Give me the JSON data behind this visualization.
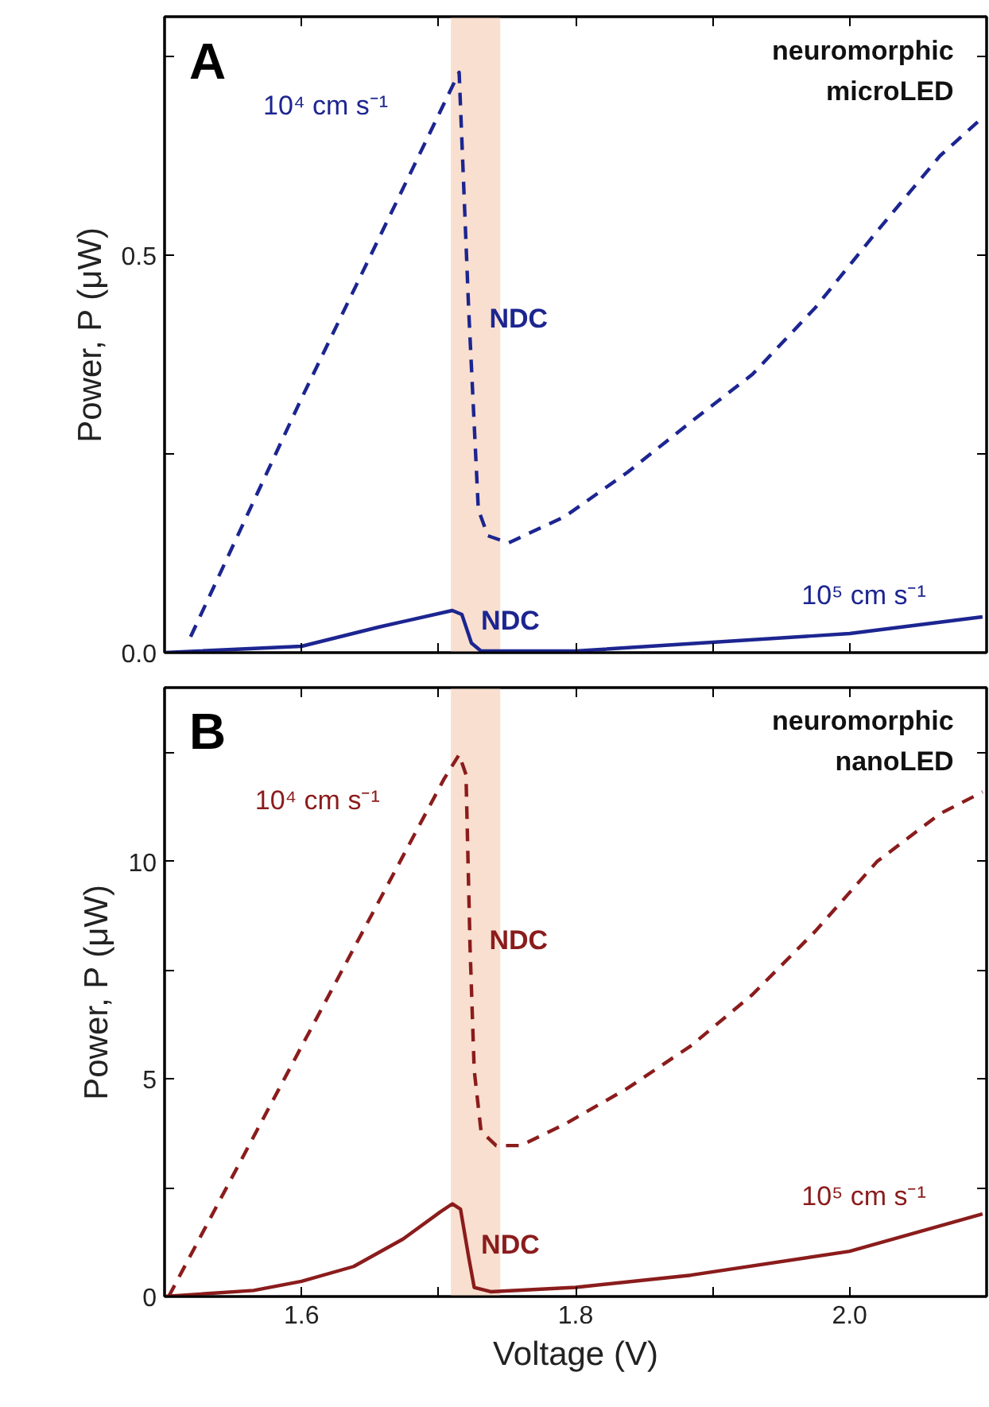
{
  "chart_data": [
    {
      "type": "line",
      "title": "A",
      "subtitle": "neuromorphic\nmicroLED",
      "ylabel": "Power, P (μW)",
      "xlim": [
        1.5,
        2.1
      ],
      "ylim": [
        0,
        0.8
      ],
      "xticks": [
        {
          "value": 1.6,
          "label": null
        },
        {
          "value": 1.7,
          "label": null
        },
        {
          "value": 1.8,
          "label": null
        },
        {
          "value": 1.9,
          "label": null
        },
        {
          "value": 2,
          "label": null
        }
      ],
      "yticks": [
        {
          "value": 0,
          "label": "0.0"
        },
        {
          "value": 0.25,
          "label": null
        },
        0.5,
        {
          "value": 0.75,
          "label": null
        }
      ],
      "tick_labels": "y",
      "bands": [
        {
          "axis": "x",
          "from": 1.709,
          "to": 1.745,
          "label": null,
          "color": "#f9dfcf"
        }
      ],
      "series": [
        {
          "color": "#1c2590",
          "line_style": "dashed",
          "x": [
            1.519,
            1.6,
            1.715,
            1.722,
            1.729,
            1.736,
            1.751,
            1.792,
            1.838,
            1.884,
            1.929,
            1.975,
            2.02,
            2.066,
            2.097
          ],
          "values": [
            0.02,
            0.32,
            0.73,
            0.43,
            0.18,
            0.147,
            0.138,
            0.171,
            0.227,
            0.29,
            0.35,
            0.434,
            0.53,
            0.625,
            0.673
          ]
        },
        {
          "color": "#1c2590",
          "line_style": "solid",
          "x": [
            1.5,
            1.6,
            1.656,
            1.71,
            1.717,
            1.724,
            1.731,
            1.8,
            2.0,
            2.097
          ],
          "values": [
            0.0,
            0.008,
            0.032,
            0.053,
            0.048,
            0.012,
            0.002,
            0.002,
            0.024,
            0.045
          ]
        }
      ],
      "annotations": [
        "10⁴ cm s⁻¹",
        "NDC",
        "NDC",
        "10⁵ cm s⁻¹"
      ]
    },
    {
      "type": "line",
      "title": "B",
      "subtitle": "neuromorphic\nnanoLED",
      "xlabel": "Voltage (V)",
      "ylabel": "Power, P (μW)",
      "xlim": [
        1.5,
        2.1
      ],
      "ylim": [
        0,
        14
      ],
      "xticks": [
        1.6,
        {
          "value": 1.7,
          "label": null
        },
        1.8,
        {
          "value": 1.9,
          "label": null
        },
        {
          "value": 2,
          "label": "2.0"
        }
      ],
      "yticks": [
        0,
        {
          "value": 2.5,
          "label": null
        },
        5,
        {
          "value": 7.5,
          "label": null
        },
        10,
        {
          "value": 12.5,
          "label": null
        }
      ],
      "bands": [
        {
          "axis": "x",
          "from": 1.709,
          "to": 1.745,
          "label": null,
          "color": "#f9dfcf"
        }
      ],
      "series": [
        {
          "color": "#8b1c1c",
          "line_style": "dashed",
          "x": [
            1.503,
            1.6,
            1.704,
            1.715,
            1.72,
            1.723,
            1.726,
            1.731,
            1.742,
            1.76,
            1.792,
            1.838,
            1.884,
            1.929,
            1.975,
            2.02,
            2.066,
            2.097
          ],
          "values": [
            0,
            5.75,
            11.9,
            12.46,
            12.0,
            8.0,
            5.2,
            3.8,
            3.47,
            3.47,
            3.96,
            4.79,
            5.76,
            6.94,
            8.4,
            10.0,
            11.1,
            11.6
          ]
        },
        {
          "color": "#8b1c1c",
          "line_style": "solid",
          "x": [
            1.5,
            1.565,
            1.6,
            1.638,
            1.674,
            1.701,
            1.71,
            1.716,
            1.722,
            1.726,
            1.738,
            1.8,
            1.884,
            2.0,
            2.097
          ],
          "values": [
            0,
            0.14,
            0.35,
            0.69,
            1.32,
            1.94,
            2.13,
            2.01,
            0.9,
            0.21,
            0.11,
            0.21,
            0.49,
            1.04,
            1.9
          ]
        }
      ],
      "annotations": [
        "10⁴ cm s⁻¹",
        "NDC",
        "NDC",
        "10⁵ cm s⁻¹"
      ]
    }
  ]
}
